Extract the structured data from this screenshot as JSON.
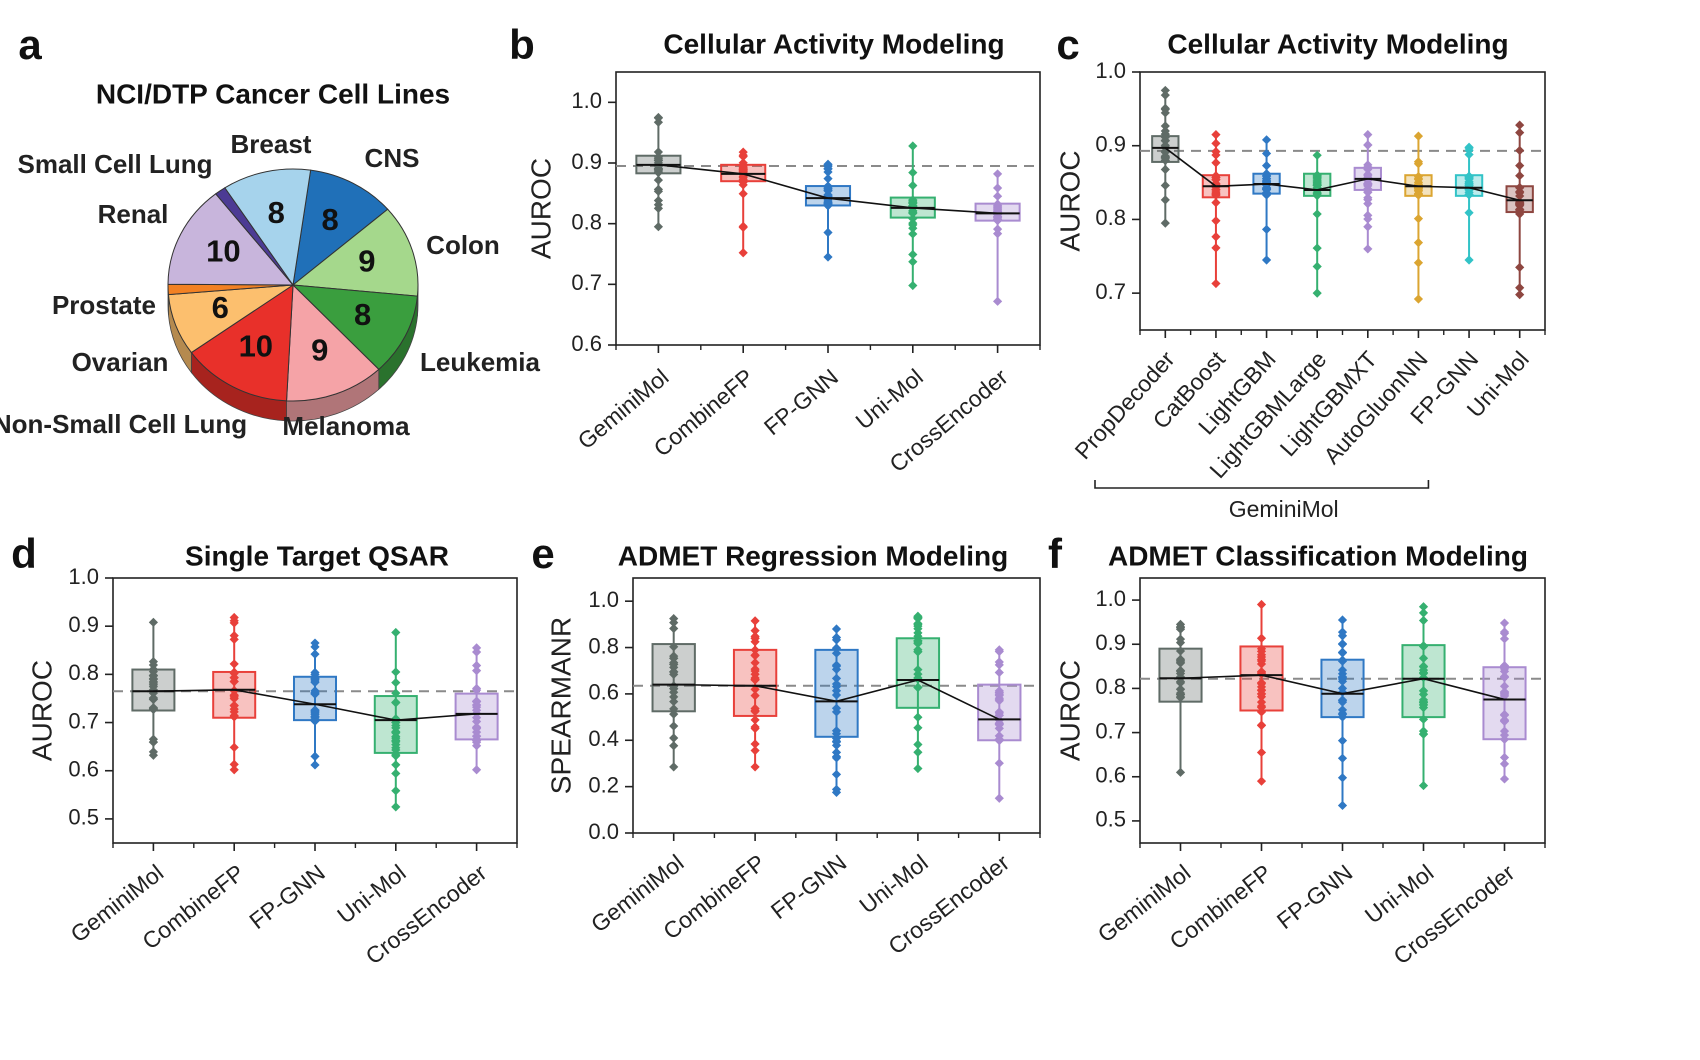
{
  "chart_data": [
    {
      "id": "a",
      "panel_letter": "a",
      "type": "pie",
      "title": "NCI/DTP Cancer Cell Lines",
      "slices": [
        {
          "label": "CNS",
          "value": 8,
          "value_label": "8",
          "color": "#2070b8"
        },
        {
          "label": "Colon",
          "value": 9,
          "value_label": "9",
          "color": "#a5d88c"
        },
        {
          "label": "Leukemia",
          "value": 8,
          "value_label": "8",
          "color": "#3a9e3e"
        },
        {
          "label": "Melanoma",
          "value": 9,
          "value_label": "9",
          "color": "#f5a3a7"
        },
        {
          "label": "Non-Small Cell Lung",
          "value": 10,
          "value_label": "10",
          "color": "#e8302a"
        },
        {
          "label": "Ovarian",
          "value": 6,
          "value_label": "6",
          "color": "#fcbf6e"
        },
        {
          "label": "Prostate",
          "value": 1,
          "value_label": "",
          "color": "#f28123"
        },
        {
          "label": "Renal",
          "value": 10,
          "value_label": "10",
          "color": "#c8b5dc"
        },
        {
          "label": "Small Cell Lung",
          "value": 1,
          "value_label": "",
          "color": "#4c3b94"
        },
        {
          "label": "Breast",
          "value": 8,
          "value_label": "8",
          "color": "#a6d3ec"
        }
      ]
    },
    {
      "id": "b",
      "panel_letter": "b",
      "type": "box",
      "title": "Cellular Activity Modeling",
      "ylabel": "AUROC",
      "ylim": [
        0.6,
        1.05
      ],
      "yticks": [
        "0.6",
        "0.7",
        "0.8",
        "0.9",
        "1.0"
      ],
      "baseline": 0.895,
      "x_group_label": "",
      "series": [
        {
          "name": "GeminiMol",
          "color": "#5f6b66",
          "q1": 0.883,
          "median": 0.897,
          "q3": 0.912,
          "whisker_low": 0.795,
          "whisker_high": 0.975
        },
        {
          "name": "CombineFP",
          "color": "#e8403a",
          "q1": 0.87,
          "median": 0.882,
          "q3": 0.897,
          "whisker_low": 0.752,
          "whisker_high": 0.918
        },
        {
          "name": "FP-GNN",
          "color": "#2f78c4",
          "q1": 0.83,
          "median": 0.842,
          "q3": 0.862,
          "whisker_low": 0.745,
          "whisker_high": 0.898
        },
        {
          "name": "Uni-Mol",
          "color": "#35b070",
          "q1": 0.81,
          "median": 0.826,
          "q3": 0.843,
          "whisker_low": 0.698,
          "whisker_high": 0.928
        },
        {
          "name": "CrossEncoder",
          "color": "#a98bd0",
          "q1": 0.805,
          "median": 0.817,
          "q3": 0.833,
          "whisker_low": 0.672,
          "whisker_high": 0.882
        }
      ]
    },
    {
      "id": "c",
      "panel_letter": "c",
      "type": "box",
      "title": "Cellular Activity Modeling",
      "ylabel": "AUROC",
      "ylim": [
        0.65,
        1.0
      ],
      "yticks": [
        "0.7",
        "0.8",
        "0.9",
        "1.0"
      ],
      "baseline": 0.893,
      "x_group_label": "GeminiMol",
      "series": [
        {
          "name": "PropDecoder",
          "color": "#5f6b66",
          "q1": 0.878,
          "median": 0.897,
          "q3": 0.913,
          "whisker_low": 0.795,
          "whisker_high": 0.975
        },
        {
          "name": "CatBoost",
          "color": "#e8403a",
          "q1": 0.83,
          "median": 0.845,
          "q3": 0.86,
          "whisker_low": 0.713,
          "whisker_high": 0.915
        },
        {
          "name": "LightGBM",
          "color": "#2f78c4",
          "q1": 0.835,
          "median": 0.848,
          "q3": 0.862,
          "whisker_low": 0.745,
          "whisker_high": 0.908
        },
        {
          "name": "LightGBMLarge",
          "color": "#35b070",
          "q1": 0.832,
          "median": 0.84,
          "q3": 0.862,
          "whisker_low": 0.7,
          "whisker_high": 0.887
        },
        {
          "name": "LightGBMXT",
          "color": "#a98bd0",
          "q1": 0.84,
          "median": 0.855,
          "q3": 0.87,
          "whisker_low": 0.76,
          "whisker_high": 0.915
        },
        {
          "name": "AutoGluonNN",
          "color": "#dba531",
          "q1": 0.832,
          "median": 0.845,
          "q3": 0.86,
          "whisker_low": 0.692,
          "whisker_high": 0.913
        },
        {
          "name": "FP-GNN",
          "color": "#32c3c7",
          "q1": 0.832,
          "median": 0.843,
          "q3": 0.86,
          "whisker_low": 0.745,
          "whisker_high": 0.898
        },
        {
          "name": "Uni-Mol",
          "color": "#8e4640",
          "q1": 0.81,
          "median": 0.826,
          "q3": 0.845,
          "whisker_low": 0.698,
          "whisker_high": 0.928
        }
      ]
    },
    {
      "id": "d",
      "panel_letter": "d",
      "type": "box",
      "title": "Single Target QSAR",
      "ylabel": "AUROC",
      "ylim": [
        0.45,
        1.0
      ],
      "yticks": [
        "0.5",
        "0.6",
        "0.7",
        "0.8",
        "0.9",
        "1.0"
      ],
      "baseline": 0.765,
      "x_group_label": "",
      "series": [
        {
          "name": "GeminiMol",
          "color": "#5f6b66",
          "q1": 0.725,
          "median": 0.765,
          "q3": 0.81,
          "whisker_low": 0.632,
          "whisker_high": 0.908
        },
        {
          "name": "CombineFP",
          "color": "#e8403a",
          "q1": 0.71,
          "median": 0.768,
          "q3": 0.805,
          "whisker_low": 0.602,
          "whisker_high": 0.918
        },
        {
          "name": "FP-GNN",
          "color": "#2f78c4",
          "q1": 0.705,
          "median": 0.738,
          "q3": 0.795,
          "whisker_low": 0.612,
          "whisker_high": 0.865
        },
        {
          "name": "Uni-Mol",
          "color": "#35b070",
          "q1": 0.637,
          "median": 0.705,
          "q3": 0.755,
          "whisker_low": 0.525,
          "whisker_high": 0.887
        },
        {
          "name": "CrossEncoder",
          "color": "#a98bd0",
          "q1": 0.665,
          "median": 0.718,
          "q3": 0.76,
          "whisker_low": 0.602,
          "whisker_high": 0.855
        }
      ]
    },
    {
      "id": "e",
      "panel_letter": "e",
      "type": "box",
      "title": "ADMET Regression Modeling",
      "ylabel": "SPEARMANR",
      "ylim": [
        0.0,
        1.1
      ],
      "yticks": [
        "0.0",
        "0.2",
        "0.4",
        "0.6",
        "0.8",
        "1.0"
      ],
      "baseline": 0.635,
      "x_group_label": "",
      "series": [
        {
          "name": "GeminiMol",
          "color": "#5f6b66",
          "q1": 0.525,
          "median": 0.64,
          "q3": 0.815,
          "whisker_low": 0.285,
          "whisker_high": 0.925
        },
        {
          "name": "CombineFP",
          "color": "#e8403a",
          "q1": 0.505,
          "median": 0.635,
          "q3": 0.79,
          "whisker_low": 0.285,
          "whisker_high": 0.915
        },
        {
          "name": "FP-GNN",
          "color": "#2f78c4",
          "q1": 0.415,
          "median": 0.568,
          "q3": 0.79,
          "whisker_low": 0.175,
          "whisker_high": 0.88
        },
        {
          "name": "Uni-Mol",
          "color": "#35b070",
          "q1": 0.54,
          "median": 0.66,
          "q3": 0.84,
          "whisker_low": 0.278,
          "whisker_high": 0.935
        },
        {
          "name": "CrossEncoder",
          "color": "#a98bd0",
          "q1": 0.4,
          "median": 0.49,
          "q3": 0.64,
          "whisker_low": 0.15,
          "whisker_high": 0.79
        }
      ]
    },
    {
      "id": "f",
      "panel_letter": "f",
      "type": "box",
      "title": "ADMET Classification Modeling",
      "ylabel": "AUROC",
      "ylim": [
        0.45,
        1.05
      ],
      "yticks": [
        "0.5",
        "0.6",
        "0.7",
        "0.8",
        "0.9",
        "1.0"
      ],
      "baseline": 0.822,
      "x_group_label": "",
      "series": [
        {
          "name": "GeminiMol",
          "color": "#5f6b66",
          "q1": 0.77,
          "median": 0.823,
          "q3": 0.89,
          "whisker_low": 0.61,
          "whisker_high": 0.945
        },
        {
          "name": "CombineFP",
          "color": "#e8403a",
          "q1": 0.75,
          "median": 0.83,
          "q3": 0.895,
          "whisker_low": 0.59,
          "whisker_high": 0.99
        },
        {
          "name": "FP-GNN",
          "color": "#2f78c4",
          "q1": 0.735,
          "median": 0.788,
          "q3": 0.865,
          "whisker_low": 0.535,
          "whisker_high": 0.955
        },
        {
          "name": "Uni-Mol",
          "color": "#35b070",
          "q1": 0.735,
          "median": 0.822,
          "q3": 0.898,
          "whisker_low": 0.58,
          "whisker_high": 0.985
        },
        {
          "name": "CrossEncoder",
          "color": "#a98bd0",
          "q1": 0.685,
          "median": 0.775,
          "q3": 0.848,
          "whisker_low": 0.595,
          "whisker_high": 0.948
        }
      ]
    }
  ]
}
